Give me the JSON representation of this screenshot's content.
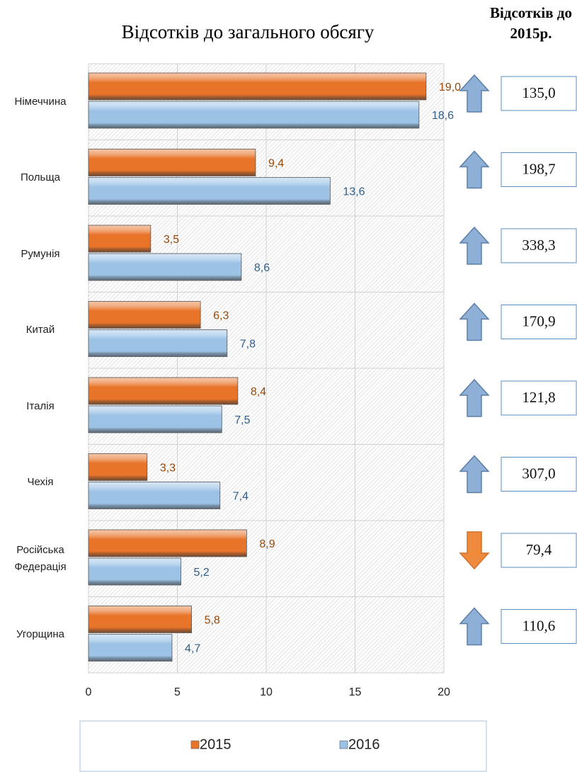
{
  "chart_data": {
    "type": "bar",
    "orientation": "horizontal",
    "title": "Відсотків до загального обсягу",
    "categories": [
      "Німеччина",
      "Польща",
      "Румунія",
      "Китай",
      "Італія",
      "Чехія",
      "Російська Федерація",
      "Угорщина"
    ],
    "series": [
      {
        "name": "2015",
        "color": "#e8742a",
        "label_color": "#984807",
        "values": [
          19.0,
          9.4,
          3.5,
          6.3,
          8.4,
          3.3,
          8.9,
          5.8
        ],
        "value_labels": [
          "19,0",
          "9,4",
          "3,5",
          "6,3",
          "8,4",
          "3,3",
          "8,9",
          "5,8"
        ]
      },
      {
        "name": "2016",
        "color": "#9cc3e6",
        "label_color": "#2f5f8a",
        "values": [
          18.6,
          13.6,
          8.6,
          7.8,
          7.5,
          7.4,
          5.2,
          4.7
        ],
        "value_labels": [
          "18,6",
          "13,6",
          "8,6",
          "7,8",
          "7,5",
          "7,4",
          "5,2",
          "4,7"
        ]
      }
    ],
    "xlim": [
      0,
      20
    ],
    "xticks": [
      0,
      5,
      10,
      15,
      20
    ],
    "grid": true,
    "legend": "bottom",
    "panel": {
      "title": "Відсотків до 2015р.",
      "values": [
        135.0,
        198.7,
        338.3,
        170.9,
        121.8,
        307.0,
        79.4,
        110.6
      ],
      "value_labels": [
        "135,0",
        "198,7",
        "338,3",
        "170,9",
        "121,8",
        "307,0",
        "79,4",
        "110,6"
      ],
      "up_color": "#8fb0d6",
      "down_color": "#ef8a3c"
    }
  }
}
